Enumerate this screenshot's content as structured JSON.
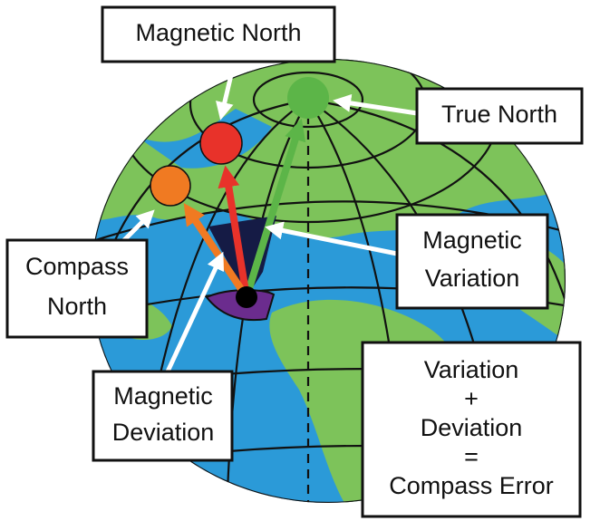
{
  "labels": {
    "magnetic_north": [
      "Magnetic North"
    ],
    "true_north": [
      "True North"
    ],
    "compass_north": [
      "Compass",
      "North"
    ],
    "magnetic_variation": [
      "Magnetic",
      "Variation"
    ],
    "magnetic_deviation": [
      "Magnetic",
      "Deviation"
    ],
    "compass_error": [
      "Variation",
      "+",
      "Deviation",
      "=",
      "Compass Error"
    ]
  }
}
